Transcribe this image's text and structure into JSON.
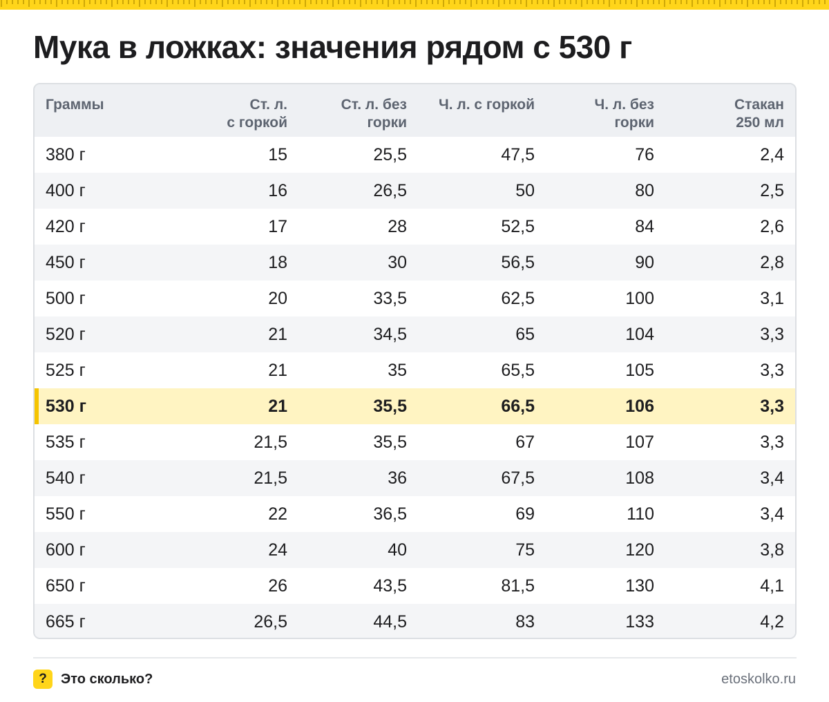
{
  "title": "Мука в ложках: значения рядом с 530 г",
  "colors": {
    "accent": "#ffd51a",
    "highlight_bg": "#fff4c2",
    "highlight_bar": "#f5c400"
  },
  "chart_data": {
    "type": "table",
    "columns": [
      [
        "Граммы"
      ],
      [
        "Ст. л.",
        "с горкой"
      ],
      [
        "Ст. л. без",
        "горки"
      ],
      [
        "Ч. л. с горкой"
      ],
      [
        "Ч. л. без",
        "горки"
      ],
      [
        "Стакан",
        "250 мл"
      ]
    ],
    "highlight_row": "530 г",
    "rows": [
      [
        "380 г",
        "15",
        "25,5",
        "47,5",
        "76",
        "2,4"
      ],
      [
        "400 г",
        "16",
        "26,5",
        "50",
        "80",
        "2,5"
      ],
      [
        "420 г",
        "17",
        "28",
        "52,5",
        "84",
        "2,6"
      ],
      [
        "450 г",
        "18",
        "30",
        "56,5",
        "90",
        "2,8"
      ],
      [
        "500 г",
        "20",
        "33,5",
        "62,5",
        "100",
        "3,1"
      ],
      [
        "520 г",
        "21",
        "34,5",
        "65",
        "104",
        "3,3"
      ],
      [
        "525 г",
        "21",
        "35",
        "65,5",
        "105",
        "3,3"
      ],
      [
        "530 г",
        "21",
        "35,5",
        "66,5",
        "106",
        "3,3"
      ],
      [
        "535 г",
        "21,5",
        "35,5",
        "67",
        "107",
        "3,3"
      ],
      [
        "540 г",
        "21,5",
        "36",
        "67,5",
        "108",
        "3,4"
      ],
      [
        "550 г",
        "22",
        "36,5",
        "69",
        "110",
        "3,4"
      ],
      [
        "600 г",
        "24",
        "40",
        "75",
        "120",
        "3,8"
      ],
      [
        "650 г",
        "26",
        "43,5",
        "81,5",
        "130",
        "4,1"
      ],
      [
        "665 г",
        "26,5",
        "44,5",
        "83",
        "133",
        "4,2"
      ]
    ]
  },
  "footer": {
    "badge": "?",
    "brand": "Это сколько?",
    "url": "etoskolko.ru"
  }
}
